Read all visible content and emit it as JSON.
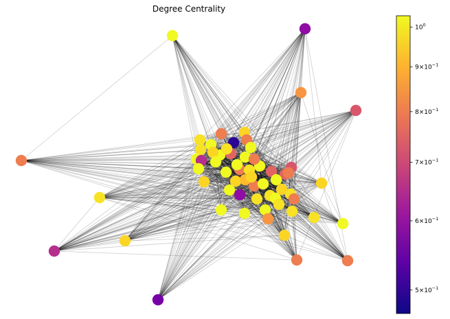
{
  "title": "Degree Centrality",
  "colormap": [
    "#0d0887",
    "#5c01a6",
    "#9c179e",
    "#cc4778",
    "#ed7953",
    "#fdb42f",
    "#f0f921"
  ],
  "colorbar": {
    "scale": "log",
    "range": [
      0.47,
      1.03
    ],
    "ticks": [
      {
        "base": "5×10",
        "exp": "−1",
        "value": 0.5
      },
      {
        "base": "6×10",
        "exp": "−1",
        "value": 0.6
      },
      {
        "base": "7×10",
        "exp": "−1",
        "value": 0.7
      },
      {
        "base": "8×10",
        "exp": "−1",
        "value": 0.8
      },
      {
        "base": "9×10",
        "exp": "−1",
        "value": 0.9
      },
      {
        "base": "10",
        "exp": "0",
        "value": 1.0
      }
    ]
  },
  "node_colors": {
    "yellow": "#f0f921",
    "light_yellow": "#f7e225",
    "gold": "#fbd524",
    "light_orange": "#feba2c",
    "orange": "#f89540",
    "deep_orange": "#ee7d4f",
    "salmon": "#e16462",
    "pinkred": "#d8576b",
    "magenta": "#b52f8c",
    "purple": "#8f0da4",
    "violet": "#7701a8",
    "indigo": "#4c02a1",
    "navy": "#2a0593"
  }
}
